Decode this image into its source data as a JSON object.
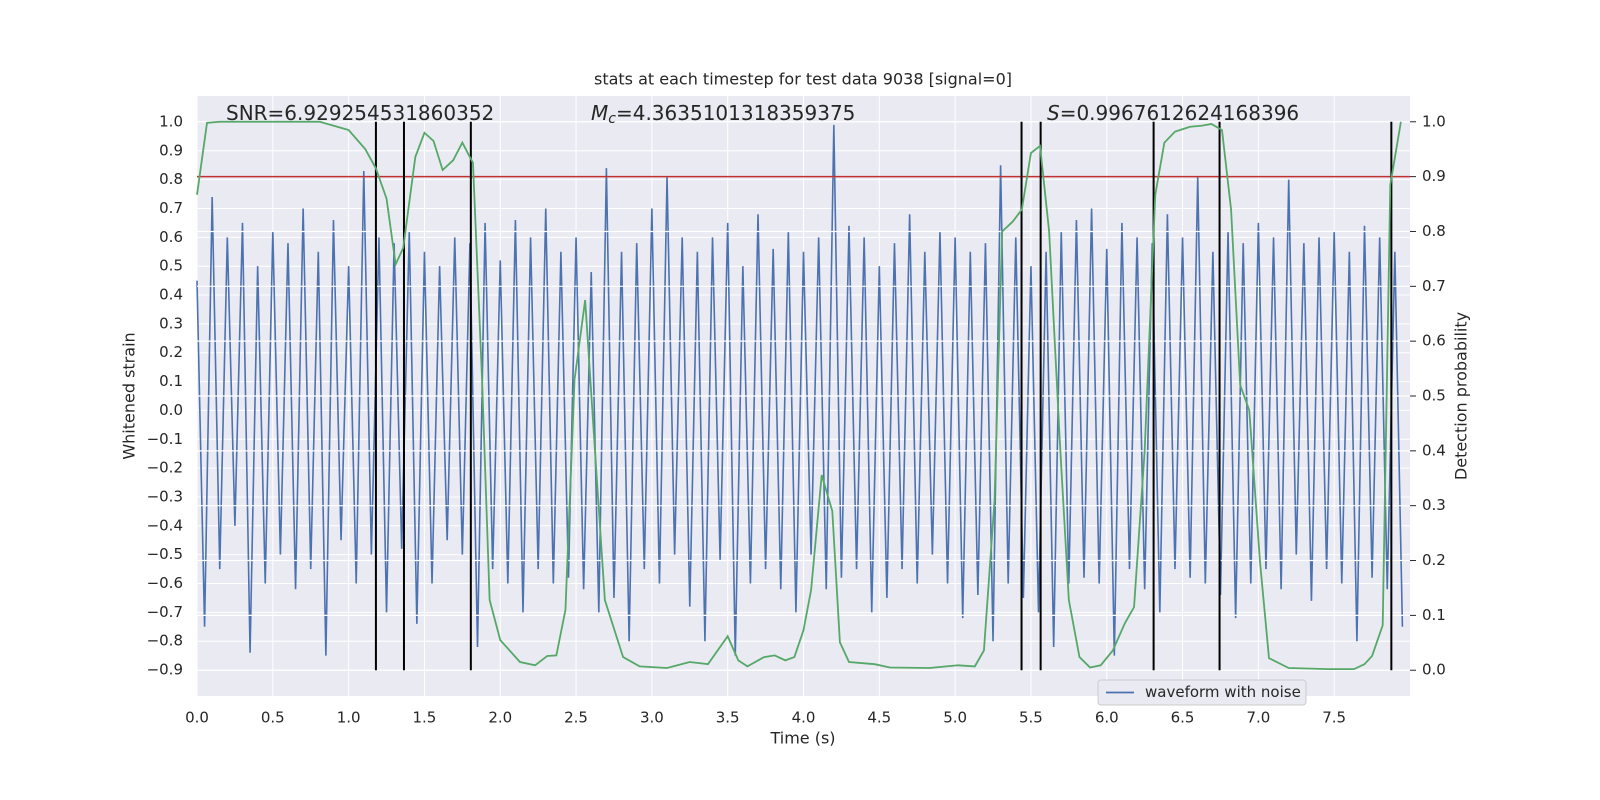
{
  "chart_data": {
    "type": "line",
    "title": "stats at each timestep for test data 9038 [signal=0]",
    "xlabel": "Time (s)",
    "ylabel": "Whitened strain",
    "y2label": "Detection probability",
    "annotations": [
      {
        "text": "SNR=6.929254531860352"
      },
      {
        "symbol": "M",
        "subscript": "c",
        "text": "=4.3635101318359375"
      },
      {
        "symbol": "S",
        "text": "=0.9967612624168396"
      }
    ],
    "xlim": [
      0,
      8
    ],
    "ylim": [
      -0.99,
      1.09
    ],
    "y2lim": [
      -0.047,
      1.047
    ],
    "xticks": [
      {
        "value": 0,
        "label": "0.0"
      },
      0.5,
      {
        "value": 1,
        "label": "1.0"
      },
      1.5,
      {
        "value": 2,
        "label": "2.0"
      },
      2.5,
      {
        "value": 3,
        "label": "3.0"
      },
      3.5,
      {
        "value": 4,
        "label": "4.0"
      },
      4.5,
      {
        "value": 5,
        "label": "5.0"
      },
      5.5,
      {
        "value": 6,
        "label": "6.0"
      },
      6.5,
      {
        "value": 7,
        "label": "7.0"
      },
      7.5
    ],
    "yticks": [
      {
        "value": -0.9,
        "label": "−0.9"
      },
      {
        "value": -0.8,
        "label": "−0.8"
      },
      {
        "value": -0.7,
        "label": "−0.7"
      },
      {
        "value": -0.6,
        "label": "−0.6"
      },
      {
        "value": -0.5,
        "label": "−0.5"
      },
      {
        "value": -0.4,
        "label": "−0.4"
      },
      {
        "value": -0.3,
        "label": "−0.3"
      },
      {
        "value": -0.2,
        "label": "−0.2"
      },
      {
        "value": -0.1,
        "label": "−0.1"
      },
      {
        "value": 0,
        "label": "0.0"
      },
      0.1,
      0.2,
      0.3,
      0.4,
      0.5,
      0.6,
      0.7,
      0.8,
      0.9,
      {
        "value": 1,
        "label": "1.0"
      }
    ],
    "y2ticks": [
      {
        "value": 0,
        "label": "0.0"
      },
      0.1,
      0.2,
      0.3,
      0.4,
      0.5,
      0.6,
      0.7,
      0.8,
      0.9,
      {
        "value": 1,
        "label": "1.0"
      }
    ],
    "grid": true,
    "legend": "lower right",
    "threshold": {
      "value": 0.9,
      "axis": "y2",
      "color": "#c03030"
    },
    "event_lines": {
      "x": [
        1.18,
        1.365,
        1.806,
        5.438,
        5.564,
        6.309,
        6.744,
        7.877
      ],
      "ymin": 0,
      "ymax": 1,
      "axis": "y2",
      "color": "#000000"
    },
    "series": [
      {
        "name": "waveform with noise",
        "color": "#4c72b0",
        "x": [
          0,
          0.05,
          0.1,
          0.15,
          0.2,
          0.25,
          0.3,
          0.35,
          0.4,
          0.45,
          0.5,
          0.55,
          0.6,
          0.65,
          0.7,
          0.75,
          0.8,
          0.85,
          0.9,
          0.95,
          1,
          1.05,
          1.1,
          1.15,
          1.2,
          1.25,
          1.3,
          1.35,
          1.4,
          1.45,
          1.5,
          1.55,
          1.6,
          1.65,
          1.7,
          1.75,
          1.8,
          1.85,
          1.9,
          1.95,
          2,
          2.05,
          2.1,
          2.15,
          2.2,
          2.25,
          2.3,
          2.35,
          2.4,
          2.45,
          2.5,
          2.55,
          2.6,
          2.65,
          2.7,
          2.75,
          2.8,
          2.85,
          2.9,
          2.95,
          3,
          3.05,
          3.1,
          3.15,
          3.2,
          3.25,
          3.3,
          3.35,
          3.4,
          3.45,
          3.5,
          3.55,
          3.6,
          3.65,
          3.7,
          3.75,
          3.8,
          3.85,
          3.9,
          3.95,
          4,
          4.05,
          4.1,
          4.15,
          4.2,
          4.25,
          4.3,
          4.35,
          4.4,
          4.45,
          4.5,
          4.55,
          4.6,
          4.65,
          4.7,
          4.75,
          4.8,
          4.85,
          4.9,
          4.95,
          5,
          5.05,
          5.1,
          5.15,
          5.2,
          5.25,
          5.3,
          5.35,
          5.4,
          5.45,
          5.5,
          5.55,
          5.6,
          5.65,
          5.7,
          5.75,
          5.8,
          5.85,
          5.9,
          5.95,
          6,
          6.05,
          6.1,
          6.15,
          6.2,
          6.25,
          6.3,
          6.35,
          6.4,
          6.45,
          6.5,
          6.55,
          6.6,
          6.65,
          6.7,
          6.75,
          6.8,
          6.85,
          6.9,
          6.95,
          7,
          7.05,
          7.1,
          7.15,
          7.2,
          7.25,
          7.3,
          7.35,
          7.4,
          7.45,
          7.5,
          7.55,
          7.6,
          7.65,
          7.7,
          7.75,
          7.8,
          7.85,
          7.9,
          7.95
        ],
        "values": [
          0.45,
          -0.75,
          0.74,
          -0.55,
          0.6,
          -0.4,
          0.65,
          -0.84,
          0.5,
          -0.6,
          0.62,
          -0.5,
          0.58,
          -0.62,
          0.7,
          -0.55,
          0.55,
          -0.85,
          0.66,
          -0.45,
          0.5,
          -0.6,
          0.83,
          -0.5,
          0.6,
          -0.7,
          0.58,
          -0.48,
          0.62,
          -0.74,
          0.55,
          -0.6,
          0.5,
          -0.45,
          0.6,
          -0.5,
          0.58,
          -0.82,
          0.65,
          -0.55,
          0.52,
          -0.6,
          0.66,
          -0.7,
          0.6,
          -0.55,
          0.7,
          -0.6,
          0.55,
          -0.58,
          0.6,
          -0.62,
          0.48,
          -0.7,
          0.84,
          -0.65,
          0.55,
          -0.8,
          0.58,
          -0.55,
          0.7,
          -0.6,
          0.81,
          -0.5,
          0.6,
          -0.68,
          0.55,
          -0.8,
          0.6,
          -0.52,
          0.65,
          -0.85,
          0.5,
          -0.6,
          0.68,
          -0.55,
          0.56,
          -0.62,
          0.62,
          -0.7,
          0.55,
          -0.5,
          0.6,
          -0.62,
          0.99,
          -0.58,
          0.64,
          -0.55,
          0.6,
          -0.7,
          0.5,
          -0.65,
          0.58,
          -0.55,
          0.68,
          -0.6,
          0.55,
          -0.5,
          0.62,
          -0.6,
          0.6,
          -0.72,
          0.55,
          -0.64,
          0.58,
          -0.8,
          0.85,
          -0.6,
          0.6,
          -0.65,
          0.5,
          -0.7,
          0.55,
          -0.82,
          0.62,
          -0.6,
          0.66,
          -0.58,
          0.7,
          -0.6,
          0.56,
          -0.85,
          0.65,
          -0.55,
          0.6,
          -0.62,
          0.58,
          -0.7,
          0.68,
          -0.55,
          0.6,
          -0.58,
          0.81,
          -0.6,
          0.55,
          -0.64,
          0.62,
          -0.72,
          0.58,
          -0.6,
          0.65,
          -0.55,
          0.6,
          -0.62,
          0.8,
          -0.5,
          0.58,
          -0.66,
          0.6,
          -0.55,
          0.62,
          -0.6,
          0.55,
          -0.8,
          0.64,
          -0.58,
          0.6,
          -0.62,
          0.55,
          -0.75
        ]
      },
      {
        "color": "#55a868",
        "axis": "y2",
        "x": [
          0,
          0.066,
          0.15,
          0.81,
          1.0,
          1.11,
          1.18,
          1.25,
          1.31,
          1.36,
          1.44,
          1.5,
          1.56,
          1.62,
          1.69,
          1.75,
          1.82,
          1.88,
          1.93,
          2.0,
          2.13,
          2.23,
          2.31,
          2.37,
          2.43,
          2.49,
          2.56,
          2.62,
          2.69,
          2.81,
          2.92,
          3.1,
          3.25,
          3.37,
          3.5,
          3.57,
          3.63,
          3.74,
          3.81,
          3.88,
          3.94,
          4.0,
          4.05,
          4.12,
          4.19,
          4.24,
          4.3,
          4.47,
          4.57,
          4.83,
          5.02,
          5.13,
          5.19,
          5.26,
          5.31,
          5.38,
          5.44,
          5.5,
          5.56,
          5.62,
          5.69,
          5.75,
          5.82,
          5.89,
          5.96,
          6.04,
          6.12,
          6.18,
          6.25,
          6.32,
          6.38,
          6.45,
          6.55,
          6.63,
          6.69,
          6.76,
          6.82,
          6.88,
          6.94,
          7.01,
          7.07,
          7.2,
          7.46,
          7.63,
          7.7,
          7.75,
          7.82,
          7.87,
          7.94
        ],
        "values": [
          0.867,
          0.998,
          1.0,
          1.0,
          0.985,
          0.95,
          0.915,
          0.86,
          0.74,
          0.77,
          0.936,
          0.98,
          0.965,
          0.912,
          0.93,
          0.962,
          0.925,
          0.53,
          0.128,
          0.055,
          0.015,
          0.009,
          0.026,
          0.027,
          0.11,
          0.53,
          0.675,
          0.42,
          0.128,
          0.024,
          0.007,
          0.004,
          0.015,
          0.011,
          0.062,
          0.018,
          0.007,
          0.024,
          0.027,
          0.018,
          0.024,
          0.073,
          0.146,
          0.356,
          0.29,
          0.051,
          0.015,
          0.011,
          0.005,
          0.004,
          0.009,
          0.007,
          0.036,
          0.31,
          0.8,
          0.818,
          0.84,
          0.943,
          0.956,
          0.8,
          0.42,
          0.128,
          0.024,
          0.005,
          0.009,
          0.036,
          0.086,
          0.115,
          0.4,
          0.867,
          0.962,
          0.982,
          0.991,
          0.993,
          0.996,
          0.985,
          0.84,
          0.52,
          0.474,
          0.2,
          0.022,
          0.004,
          0.002,
          0.002,
          0.011,
          0.026,
          0.082,
          0.885,
          1.0
        ]
      }
    ]
  }
}
